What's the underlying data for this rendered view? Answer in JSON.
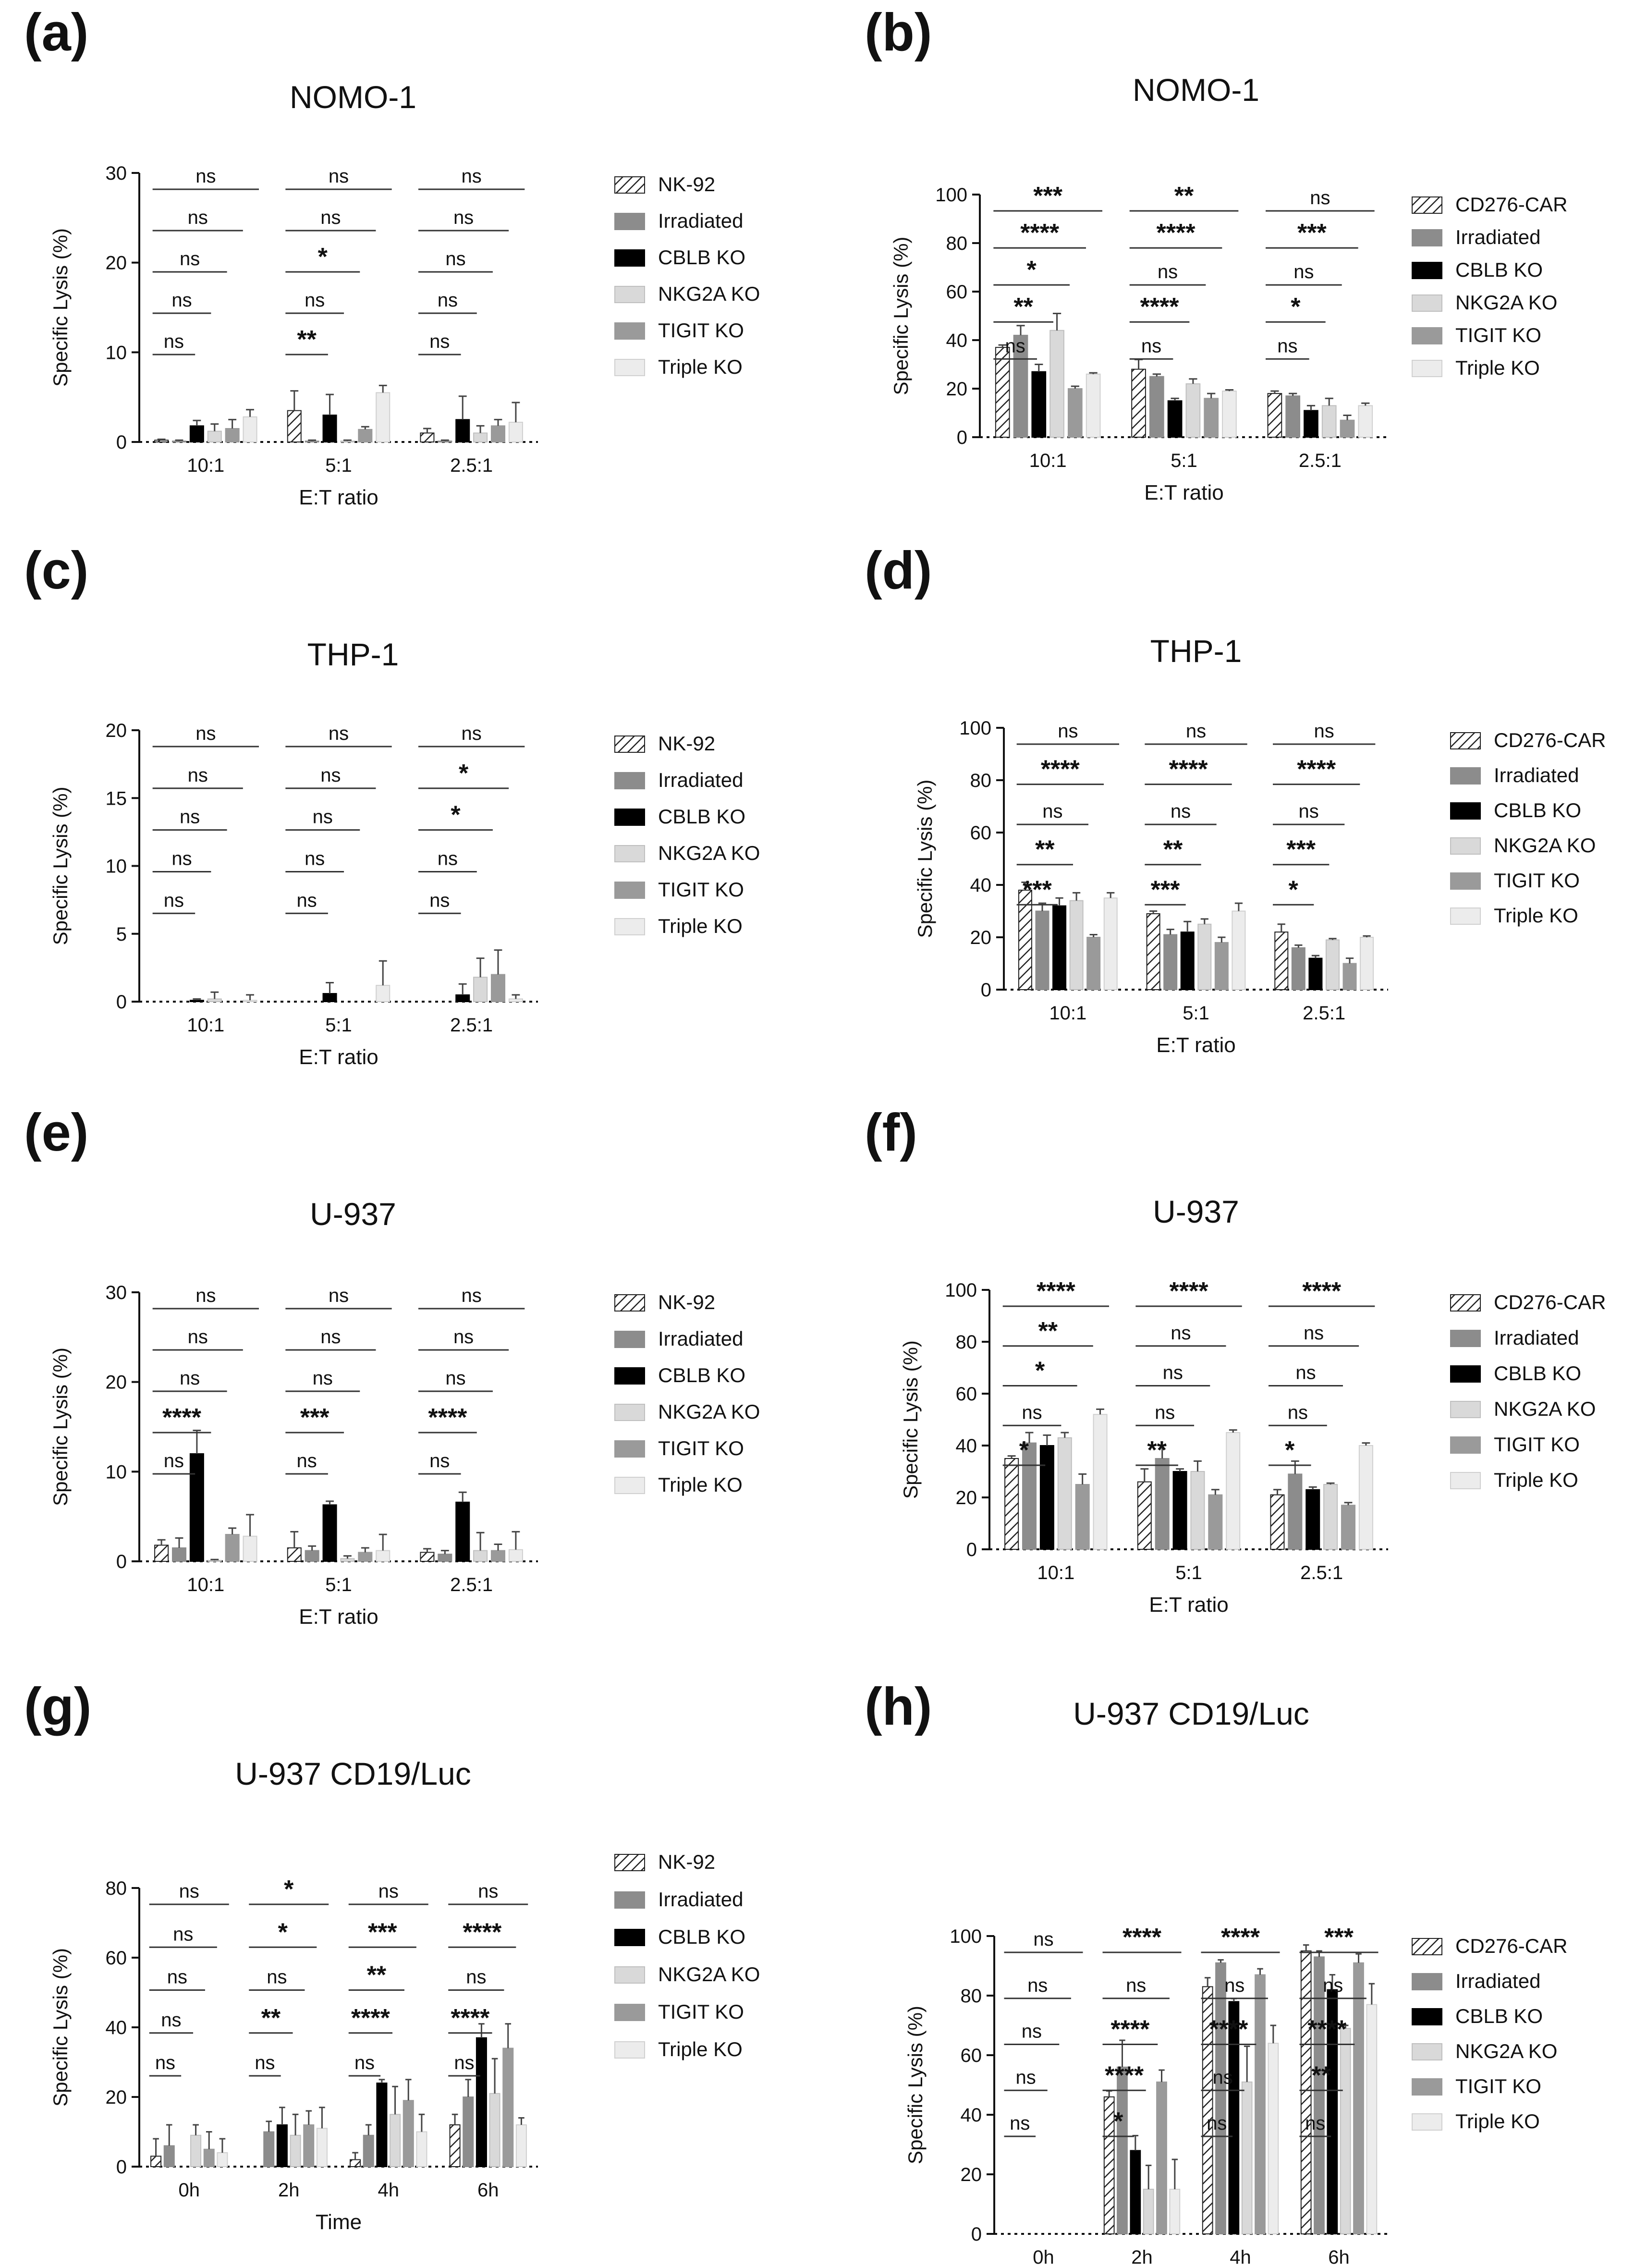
{
  "chart_data": [
    {
      "panel": "(a)",
      "type": "bar",
      "title": "NOMO-1",
      "xlabel": "E:T ratio",
      "ylabel": "Specific Lysis (%)",
      "ylim": [
        0,
        30
      ],
      "yticks": [
        "0",
        "10",
        "20",
        "30"
      ],
      "categories": [
        "10:1",
        "5:1",
        "2.5:1"
      ],
      "grid": false,
      "legend_position": "right",
      "series": [
        {
          "name": "NK-92",
          "values": [
            0.2,
            3.5,
            1.0
          ],
          "errors": [
            0.1,
            2.2,
            0.5
          ]
        },
        {
          "name": "Irradiated",
          "values": [
            0.1,
            0.1,
            0.1
          ],
          "errors": [
            0.1,
            0.1,
            0.1
          ]
        },
        {
          "name": "CBLB KO",
          "values": [
            1.8,
            3.0,
            2.5
          ],
          "errors": [
            0.6,
            2.3,
            2.6
          ]
        },
        {
          "name": "NKG2A KO",
          "values": [
            1.2,
            0.1,
            1.0
          ],
          "errors": [
            0.8,
            0.1,
            0.8
          ]
        },
        {
          "name": "TIGIT KO",
          "values": [
            1.5,
            1.4,
            1.8
          ],
          "errors": [
            1.0,
            0.3,
            0.7
          ]
        },
        {
          "name": "Triple KO",
          "values": [
            2.8,
            5.5,
            2.2
          ],
          "errors": [
            0.8,
            0.8,
            2.2
          ]
        }
      ],
      "annotations": {
        "10:1": [
          "ns",
          "ns",
          "ns",
          "ns",
          "ns"
        ],
        "5:1": [
          "ns",
          "ns",
          "*",
          "ns",
          "**"
        ],
        "2.5:1": [
          "ns",
          "ns",
          "ns",
          "ns",
          "ns"
        ]
      }
    },
    {
      "panel": "(b)",
      "type": "bar",
      "title": "NOMO-1",
      "xlabel": "E:T ratio",
      "ylabel": "Specific Lysis (%)",
      "ylim": [
        0,
        100
      ],
      "yticks": [
        "0",
        "20",
        "40",
        "60",
        "80",
        "100"
      ],
      "categories": [
        "10:1",
        "5:1",
        "2.5:1"
      ],
      "grid": false,
      "legend_position": "right",
      "series": [
        {
          "name": "CD276-CAR",
          "values": [
            37,
            28,
            18
          ],
          "errors": [
            1,
            4,
            1
          ]
        },
        {
          "name": "Irradiated",
          "values": [
            42,
            25,
            17
          ],
          "errors": [
            4,
            1,
            1
          ]
        },
        {
          "name": "CBLB KO",
          "values": [
            27,
            15,
            11
          ],
          "errors": [
            3,
            1,
            2
          ]
        },
        {
          "name": "NKG2A KO",
          "values": [
            44,
            22,
            13
          ],
          "errors": [
            7,
            2,
            3
          ]
        },
        {
          "name": "TIGIT KO",
          "values": [
            20,
            16,
            7
          ],
          "errors": [
            1,
            2,
            2
          ]
        },
        {
          "name": "Triple KO",
          "values": [
            26,
            19,
            13
          ],
          "errors": [
            0.5,
            0.5,
            1
          ]
        }
      ],
      "annotations": {
        "10:1": [
          "***",
          "****",
          "*",
          "**",
          "ns"
        ],
        "5:1": [
          "**",
          "****",
          "ns",
          "****",
          "ns"
        ],
        "2.5:1": [
          "ns",
          "***",
          "ns",
          "*",
          "ns"
        ]
      }
    },
    {
      "panel": "(c)",
      "type": "bar",
      "title": "THP-1",
      "xlabel": "E:T ratio",
      "ylabel": "Specific Lysis (%)",
      "ylim": [
        0,
        20
      ],
      "yticks": [
        "0",
        "5",
        "10",
        "15",
        "20"
      ],
      "categories": [
        "10:1",
        "5:1",
        "2.5:1"
      ],
      "grid": false,
      "legend_position": "right",
      "series": [
        {
          "name": "NK-92",
          "values": [
            0,
            0,
            0
          ],
          "errors": [
            0,
            0,
            0
          ]
        },
        {
          "name": "Irradiated",
          "values": [
            0,
            0,
            0
          ],
          "errors": [
            0,
            0,
            0
          ]
        },
        {
          "name": "CBLB KO",
          "values": [
            0.1,
            0.6,
            0.5
          ],
          "errors": [
            0.1,
            0.8,
            0.8
          ]
        },
        {
          "name": "NKG2A KO",
          "values": [
            0.2,
            0,
            1.8
          ],
          "errors": [
            0.5,
            0,
            1.4
          ]
        },
        {
          "name": "TIGIT KO",
          "values": [
            0,
            0,
            2.0
          ],
          "errors": [
            0,
            0,
            1.8
          ]
        },
        {
          "name": "Triple KO",
          "values": [
            0.1,
            1.2,
            0.2
          ],
          "errors": [
            0.4,
            1.8,
            0.3
          ]
        }
      ],
      "annotations": {
        "10:1": [
          "ns",
          "ns",
          "ns",
          "ns",
          "ns"
        ],
        "5:1": [
          "ns",
          "ns",
          "ns",
          "ns",
          "ns"
        ],
        "2.5:1": [
          "ns",
          "*",
          "*",
          "ns",
          "ns"
        ]
      }
    },
    {
      "panel": "(d)",
      "type": "bar",
      "title": "THP-1",
      "xlabel": "E:T ratio",
      "ylabel": "Specific Lysis (%)",
      "ylim": [
        0,
        100
      ],
      "yticks": [
        "0",
        "20",
        "40",
        "60",
        "80",
        "100"
      ],
      "categories": [
        "10:1",
        "5:1",
        "2.5:1"
      ],
      "grid": false,
      "legend_position": "right",
      "series": [
        {
          "name": "CD276-CAR",
          "values": [
            38,
            29,
            22
          ],
          "errors": [
            3,
            1,
            3
          ]
        },
        {
          "name": "Irradiated",
          "values": [
            30,
            21,
            16
          ],
          "errors": [
            3,
            2,
            1
          ]
        },
        {
          "name": "CBLB KO",
          "values": [
            32,
            22,
            12
          ],
          "errors": [
            3,
            4,
            1
          ]
        },
        {
          "name": "NKG2A KO",
          "values": [
            34,
            25,
            19
          ],
          "errors": [
            3,
            2,
            0.5
          ]
        },
        {
          "name": "TIGIT KO",
          "values": [
            20,
            18,
            10
          ],
          "errors": [
            1,
            2,
            2
          ]
        },
        {
          "name": "Triple KO",
          "values": [
            35,
            30,
            20
          ],
          "errors": [
            2,
            3,
            0.5
          ]
        }
      ],
      "annotations": {
        "10:1": [
          "ns",
          "****",
          "ns",
          "**",
          "***"
        ],
        "5:1": [
          "ns",
          "****",
          "ns",
          "**",
          "***"
        ],
        "2.5:1": [
          "ns",
          "****",
          "ns",
          "***",
          "*"
        ]
      }
    },
    {
      "panel": "(e)",
      "type": "bar",
      "title": "U-937",
      "xlabel": "E:T ratio",
      "ylabel": "Specific Lysis (%)",
      "ylim": [
        0,
        30
      ],
      "yticks": [
        "0",
        "10",
        "20",
        "30"
      ],
      "categories": [
        "10:1",
        "5:1",
        "2.5:1"
      ],
      "grid": false,
      "legend_position": "right",
      "series": [
        {
          "name": "NK-92",
          "values": [
            1.8,
            1.5,
            1.0
          ],
          "errors": [
            0.6,
            1.8,
            0.4
          ]
        },
        {
          "name": "Irradiated",
          "values": [
            1.5,
            1.2,
            0.8
          ],
          "errors": [
            1.1,
            0.5,
            0.4
          ]
        },
        {
          "name": "CBLB KO",
          "values": [
            12,
            6.3,
            6.6
          ],
          "errors": [
            2.6,
            0.4,
            1.1
          ]
        },
        {
          "name": "NKG2A KO",
          "values": [
            0.1,
            0.3,
            1.2
          ],
          "errors": [
            0.1,
            0.3,
            2.0
          ]
        },
        {
          "name": "TIGIT KO",
          "values": [
            3.0,
            1.0,
            1.2
          ],
          "errors": [
            0.7,
            0.5,
            0.7
          ]
        },
        {
          "name": "Triple KO",
          "values": [
            2.8,
            1.2,
            1.3
          ],
          "errors": [
            2.4,
            1.8,
            2.0
          ]
        }
      ],
      "annotations": {
        "10:1": [
          "ns",
          "ns",
          "ns",
          "****",
          "ns"
        ],
        "5:1": [
          "ns",
          "ns",
          "ns",
          "***",
          "ns"
        ],
        "2.5:1": [
          "ns",
          "ns",
          "ns",
          "****",
          "ns"
        ]
      }
    },
    {
      "panel": "(f)",
      "type": "bar",
      "title": "U-937",
      "xlabel": "E:T ratio",
      "ylabel": "Specific Lysis (%)",
      "ylim": [
        0,
        100
      ],
      "yticks": [
        "0",
        "20",
        "40",
        "60",
        "80",
        "100"
      ],
      "categories": [
        "10:1",
        "5:1",
        "2.5:1"
      ],
      "grid": false,
      "legend_position": "right",
      "series": [
        {
          "name": "CD276-CAR",
          "values": [
            35,
            26,
            21
          ],
          "errors": [
            1,
            5,
            2
          ]
        },
        {
          "name": "Irradiated",
          "values": [
            41,
            35,
            29
          ],
          "errors": [
            4,
            5,
            5
          ]
        },
        {
          "name": "CBLB KO",
          "values": [
            40,
            30,
            23
          ],
          "errors": [
            4,
            1,
            1
          ]
        },
        {
          "name": "NKG2A KO",
          "values": [
            43,
            30,
            25
          ],
          "errors": [
            2,
            4,
            0.5
          ]
        },
        {
          "name": "TIGIT KO",
          "values": [
            25,
            21,
            17
          ],
          "errors": [
            4,
            2,
            1
          ]
        },
        {
          "name": "Triple KO",
          "values": [
            52,
            45,
            40
          ],
          "errors": [
            2,
            1,
            1
          ]
        }
      ],
      "annotations": {
        "10:1": [
          "****",
          "**",
          "*",
          "ns",
          "*"
        ],
        "5:1": [
          "****",
          "ns",
          "ns",
          "ns",
          "**"
        ],
        "2.5:1": [
          "****",
          "ns",
          "ns",
          "ns",
          "*"
        ]
      }
    },
    {
      "panel": "(g)",
      "type": "bar",
      "title": "U-937 CD19/Luc",
      "xlabel": "Time",
      "ylabel": "Specific Lysis (%)",
      "ylim": [
        0,
        80
      ],
      "yticks": [
        "0",
        "20",
        "40",
        "60",
        "80"
      ],
      "categories": [
        "0h",
        "2h",
        "4h",
        "6h"
      ],
      "grid": false,
      "legend_position": "right",
      "series": [
        {
          "name": "NK-92",
          "values": [
            3,
            0,
            2,
            12
          ],
          "errors": [
            5,
            0,
            2,
            3
          ]
        },
        {
          "name": "Irradiated",
          "values": [
            6,
            10,
            9,
            20
          ],
          "errors": [
            6,
            3,
            3,
            5
          ]
        },
        {
          "name": "CBLB KO",
          "values": [
            0,
            12,
            24,
            37
          ],
          "errors": [
            0,
            5,
            1,
            4
          ]
        },
        {
          "name": "NKG2A KO",
          "values": [
            9,
            9,
            15,
            21
          ],
          "errors": [
            3,
            6,
            8,
            10
          ]
        },
        {
          "name": "TIGIT KO",
          "values": [
            5,
            12,
            19,
            34
          ],
          "errors": [
            5,
            4,
            6,
            7
          ]
        },
        {
          "name": "Triple KO",
          "values": [
            4,
            11,
            10,
            12
          ],
          "errors": [
            4,
            6,
            5,
            2
          ]
        }
      ],
      "annotations": {
        "0h": [
          "ns",
          "ns",
          "ns",
          "ns",
          "ns"
        ],
        "2h": [
          "*",
          "*",
          "ns",
          "**",
          "ns"
        ],
        "4h": [
          "ns",
          "***",
          "**",
          "****",
          "ns"
        ],
        "6h": [
          "ns",
          "****",
          "ns",
          "****",
          "ns"
        ]
      }
    },
    {
      "panel": "(h)",
      "type": "bar",
      "title": "U-937 CD19/Luc",
      "xlabel": "Time",
      "ylabel": "Specific Lysis (%)",
      "ylim": [
        0,
        100
      ],
      "yticks": [
        "0",
        "20",
        "40",
        "60",
        "80",
        "100"
      ],
      "categories": [
        "0h",
        "2h",
        "4h",
        "6h"
      ],
      "grid": false,
      "legend_position": "right",
      "series": [
        {
          "name": "CD276-CAR",
          "values": [
            0,
            46,
            83,
            95
          ],
          "errors": [
            0,
            2,
            3,
            2
          ]
        },
        {
          "name": "Irradiated",
          "values": [
            0,
            56,
            91,
            93
          ],
          "errors": [
            0,
            9,
            1,
            2
          ]
        },
        {
          "name": "CBLB KO",
          "values": [
            0,
            28,
            78,
            82
          ],
          "errors": [
            0,
            5,
            1,
            5
          ]
        },
        {
          "name": "NKG2A KO",
          "values": [
            0,
            15,
            51,
            69
          ],
          "errors": [
            0,
            8,
            12,
            1
          ]
        },
        {
          "name": "TIGIT KO",
          "values": [
            0,
            51,
            87,
            91
          ],
          "errors": [
            0,
            4,
            2,
            3
          ]
        },
        {
          "name": "Triple KO",
          "values": [
            0,
            15,
            64,
            77
          ],
          "errors": [
            0,
            10,
            6,
            7
          ]
        }
      ],
      "annotations": {
        "0h": [
          "ns",
          "ns",
          "ns",
          "ns",
          "ns"
        ],
        "2h": [
          "****",
          "ns",
          "****",
          "****",
          "*"
        ],
        "4h": [
          "****",
          "ns",
          "****",
          "ns",
          "ns"
        ],
        "6h": [
          "***",
          "ns",
          "****",
          "**",
          "ns"
        ]
      }
    }
  ],
  "panel_labels": [
    "(a)",
    "(b)",
    "(c)",
    "(d)",
    "(e)",
    "(f)",
    "(g)",
    "(h)"
  ]
}
